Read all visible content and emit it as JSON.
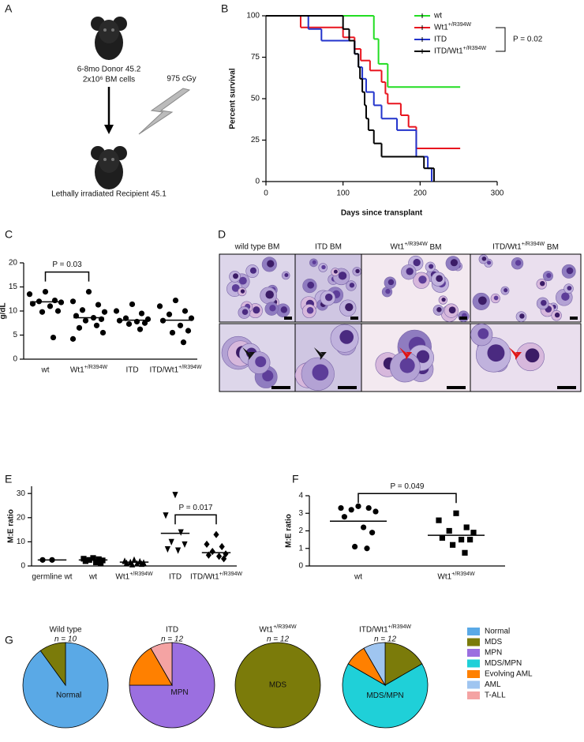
{
  "schematic": {
    "panel": "A",
    "donor": "6-8mo Donor 45.2",
    "cells": "2x10⁶ BM cells",
    "dose": "975 cGy",
    "recipient": "Lethally irradiated Recipient 45.1"
  },
  "micrographs": {
    "panel": "D",
    "columns": [
      "wild type BM",
      "ITD BM",
      "Wt1+/R394W BM",
      "ITD/Wt1+/R394W BM"
    ]
  },
  "chart_data": [
    {
      "panel": "B",
      "type": "step",
      "x_label": "Days since transplant",
      "y_label": "Percent survival",
      "xlim": [
        0,
        300
      ],
      "xticks": [
        0,
        100,
        200,
        300
      ],
      "ylim": [
        0,
        100
      ],
      "yticks": [
        0,
        25,
        50,
        75,
        100
      ],
      "series": [
        {
          "name": "wt",
          "color": "#22dd22",
          "x": [
            0,
            140,
            146,
            158,
            252
          ],
          "values": [
            100,
            86,
            71,
            57,
            57
          ]
        },
        {
          "name": "Wt1+/R394W",
          "color": "#e8141e",
          "x": [
            0,
            45,
            100,
            115,
            123,
            135,
            150,
            155,
            158,
            175,
            185,
            195,
            252
          ],
          "values": [
            100,
            93,
            87,
            80,
            73,
            67,
            60,
            53,
            47,
            40,
            33,
            20,
            20
          ]
        },
        {
          "name": "ITD",
          "color": "#2233cc",
          "x": [
            0,
            55,
            72,
            115,
            120,
            125,
            130,
            140,
            150,
            170,
            195,
            210,
            215
          ],
          "values": [
            100,
            92,
            85,
            77,
            69,
            62,
            54,
            46,
            38,
            31,
            15,
            8,
            0
          ]
        },
        {
          "name": "ITD/Wt1+/R394W",
          "color": "#000000",
          "x": [
            0,
            100,
            108,
            115,
            120,
            122,
            125,
            128,
            130,
            133,
            140,
            150,
            205,
            218
          ],
          "values": [
            100,
            92,
            85,
            77,
            69,
            62,
            54,
            46,
            38,
            31,
            23,
            15,
            8,
            0
          ]
        }
      ],
      "annotation": "P = 0.02",
      "comparison": [
        1,
        3
      ]
    },
    {
      "panel": "C",
      "type": "strip",
      "y_label": "g/dL",
      "ylim": [
        0,
        20
      ],
      "yticks": [
        0,
        5,
        10,
        15,
        20
      ],
      "categories": [
        "wt",
        "Wt1+/R394W",
        "ITD",
        "ITD/Wt1+/R394W"
      ],
      "markers": [
        "circle",
        "circle",
        "circle",
        "circle"
      ],
      "values": [
        [
          14,
          13.5,
          12.2,
          12,
          11.8,
          11.5,
          11,
          10,
          9.8,
          4.5
        ],
        [
          14,
          12,
          11.3,
          10.2,
          9.8,
          9,
          8.6,
          8.3,
          8,
          7,
          6.5,
          5.5,
          4.2
        ],
        [
          11.4,
          10,
          9.5,
          8.5,
          8.3,
          8,
          7.8,
          7.5,
          7.3,
          6.2
        ],
        [
          12.2,
          11,
          10,
          9.3,
          8.5,
          8,
          7,
          5.9,
          5.5,
          3.5
        ]
      ],
      "means": [
        11.9,
        8.6,
        8.1,
        8.1
      ],
      "annotation": "P = 0.03",
      "comparison": [
        0,
        1
      ]
    },
    {
      "panel": "E",
      "type": "strip",
      "y_label": "M:E ratio",
      "ylim": [
        0,
        33
      ],
      "yticks": [
        0,
        10,
        20,
        30
      ],
      "categories": [
        "germline wt",
        "wt",
        "Wt1+/R394W",
        "ITD",
        "ITD/Wt1+/R394W"
      ],
      "markers": [
        "circle",
        "square",
        "triangle-up",
        "triangle-down",
        "diamond"
      ],
      "values": [
        [
          2.5,
          2.5
        ],
        [
          3.3,
          3,
          2.8,
          2.5,
          2.3,
          2,
          1.5,
          1
        ],
        [
          2.5,
          2,
          1.8,
          1.5,
          1.3,
          1.2,
          1,
          0.8,
          0.6
        ],
        [
          29.5,
          21,
          14,
          10,
          9,
          7,
          6.5
        ],
        [
          13,
          9,
          8,
          6,
          5,
          4.5,
          4,
          3
        ]
      ],
      "means": [
        2.5,
        2.5,
        1.6,
        13.5,
        5.5
      ],
      "annotation": "P = 0.017",
      "comparison": [
        3,
        4
      ]
    },
    {
      "panel": "F",
      "type": "strip",
      "y_label": "M:E ratio",
      "ylim": [
        0,
        4
      ],
      "yticks": [
        0,
        1,
        2,
        3,
        4
      ],
      "categories": [
        "wt",
        "Wt1+/R394W"
      ],
      "markers": [
        "circle",
        "square"
      ],
      "values": [
        [
          3.4,
          3.3,
          3.3,
          3.2,
          3.1,
          2.8,
          2.2,
          1.9,
          1.1,
          1.0
        ],
        [
          3.0,
          2.6,
          2.2,
          2.0,
          1.9,
          1.6,
          1.5,
          1.5,
          1.2,
          0.75
        ]
      ],
      "means": [
        2.55,
        1.75
      ],
      "annotation": "P = 0.049",
      "comparison": [
        0,
        1
      ]
    },
    {
      "panel": "G",
      "type": "pie",
      "categories": [
        "Normal",
        "MDS",
        "MPN",
        "MDS/MPN",
        "Evolving AML",
        "AML",
        "T-ALL"
      ],
      "colors": [
        "#5aa9e6",
        "#7b7b0a",
        "#9b6fe0",
        "#1fd0d8",
        "#ff8000",
        "#9fc5f0",
        "#f4a3a3"
      ],
      "series": [
        {
          "name": "Wild type",
          "subtitle": "n = 10",
          "values": [
            9,
            1,
            0,
            0,
            0,
            0,
            0
          ]
        },
        {
          "name": "ITD",
          "subtitle": "n = 12",
          "values": [
            0,
            0,
            9,
            0,
            2,
            0,
            1
          ]
        },
        {
          "name": "Wt1+/R394W",
          "subtitle": "n = 12",
          "values": [
            0,
            12,
            0,
            0,
            0,
            0,
            0
          ]
        },
        {
          "name": "ITD/Wt1+/R394W",
          "subtitle": "n = 12",
          "values": [
            0,
            2,
            0,
            8,
            1,
            1,
            0
          ]
        }
      ]
    }
  ]
}
